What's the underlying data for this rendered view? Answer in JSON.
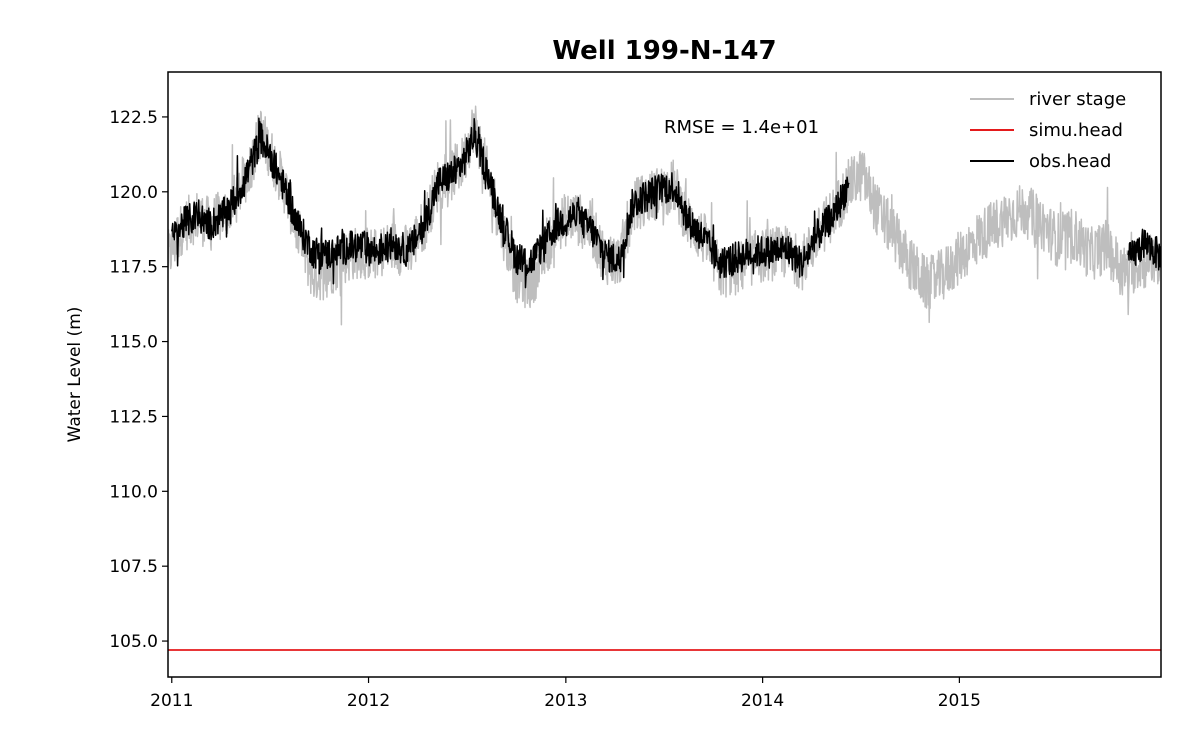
{
  "chart_data": {
    "type": "line",
    "title": "Well 199-N-147",
    "xlabel": "",
    "ylabel": "Water Level (m)",
    "annotation": "RMSE = 1.4e+01",
    "legend_position": "top-right",
    "grid": false,
    "xlim": [
      "2010-12-25",
      "2016-01-10"
    ],
    "ylim": [
      103.8,
      124.0
    ],
    "x_ticks": [
      {
        "label": "2011",
        "date": "2011-01-01"
      },
      {
        "label": "2012",
        "date": "2012-01-01"
      },
      {
        "label": "2013",
        "date": "2013-01-01"
      },
      {
        "label": "2014",
        "date": "2014-01-01"
      },
      {
        "label": "2015",
        "date": "2015-01-01"
      }
    ],
    "y_ticks": [
      "105.0",
      "107.5",
      "110.0",
      "112.5",
      "115.0",
      "117.5",
      "120.0",
      "122.5"
    ],
    "series": [
      {
        "name": "river stage",
        "color": "#bebebe",
        "noise": 0.9,
        "x": [
          "2010-12-25",
          "2011-01-20",
          "2011-02-15",
          "2011-03-15",
          "2011-04-10",
          "2011-05-01",
          "2011-05-25",
          "2011-06-15",
          "2011-07-05",
          "2011-08-01",
          "2011-08-25",
          "2011-09-20",
          "2011-10-15",
          "2011-11-15",
          "2011-12-15",
          "2012-01-15",
          "2012-02-15",
          "2012-03-15",
          "2012-04-15",
          "2012-05-10",
          "2012-06-05",
          "2012-06-25",
          "2012-07-15",
          "2012-08-05",
          "2012-09-01",
          "2012-10-01",
          "2012-10-25",
          "2012-11-20",
          "2012-12-15",
          "2013-01-15",
          "2013-02-15",
          "2013-03-15",
          "2013-04-10",
          "2013-05-05",
          "2013-06-01",
          "2013-06-25",
          "2013-07-20",
          "2013-08-15",
          "2013-09-15",
          "2013-10-15",
          "2013-11-15",
          "2013-12-15",
          "2014-01-15",
          "2014-02-15",
          "2014-03-15",
          "2014-04-15",
          "2014-05-15",
          "2014-06-10",
          "2014-07-05",
          "2014-08-01",
          "2014-09-01",
          "2014-10-01",
          "2014-11-01",
          "2014-12-01",
          "2015-01-01",
          "2015-02-01",
          "2015-03-01",
          "2015-04-01",
          "2015-05-01",
          "2015-06-01",
          "2015-07-01",
          "2015-08-01",
          "2015-09-01",
          "2015-10-01",
          "2015-11-01",
          "2015-12-01",
          "2016-01-10"
        ],
        "y": [
          117.8,
          118.8,
          119.2,
          118.9,
          119.3,
          119.8,
          120.8,
          122.0,
          121.2,
          120.0,
          118.5,
          117.2,
          117.3,
          117.8,
          118.0,
          117.9,
          118.2,
          118.0,
          119.0,
          120.3,
          120.6,
          121.0,
          122.3,
          120.8,
          119.0,
          117.2,
          116.9,
          117.8,
          118.9,
          119.2,
          118.8,
          117.8,
          117.7,
          119.5,
          119.8,
          120.0,
          120.2,
          119.0,
          118.4,
          117.3,
          117.4,
          117.8,
          117.9,
          118.0,
          117.6,
          118.6,
          119.4,
          120.2,
          120.6,
          119.4,
          118.6,
          117.6,
          116.9,
          117.2,
          117.8,
          118.4,
          118.8,
          119.2,
          119.4,
          119.0,
          118.4,
          118.6,
          117.9,
          118.2,
          117.3,
          117.6,
          117.8
        ]
      },
      {
        "name": "simu.head",
        "color": "#e41a1c",
        "noise": 0,
        "x": [
          "2010-12-25",
          "2016-01-10"
        ],
        "y": [
          104.7,
          104.7
        ]
      },
      {
        "name": "obs.head",
        "color": "#000000",
        "noise": 0.55,
        "x": [
          "2011-01-01",
          "2011-01-20",
          "2011-02-15",
          "2011-03-15",
          "2011-04-10",
          "2011-05-01",
          "2011-05-25",
          "2011-06-15",
          "2011-07-05",
          "2011-08-01",
          "2011-08-25",
          "2011-09-20",
          "2011-10-15",
          "2011-11-15",
          "2011-12-15",
          "2012-01-15",
          "2012-02-15",
          "2012-03-15",
          "2012-04-15",
          "2012-05-10",
          "2012-06-05",
          "2012-06-25",
          "2012-07-15",
          "2012-08-05",
          "2012-09-01",
          "2012-10-01",
          "2012-10-25",
          "2012-11-20",
          "2012-12-15",
          "2013-01-15",
          "2013-02-15",
          "2013-03-15",
          "2013-04-10",
          "2013-05-05",
          "2013-06-01",
          "2013-06-25",
          "2013-07-20",
          "2013-08-15",
          "2013-09-15",
          "2013-10-15",
          "2013-11-15",
          "2013-12-15",
          "2014-01-15",
          "2014-02-15",
          "2014-03-15",
          "2014-04-15",
          "2014-05-15",
          "2014-06-10",
          "2015-11-10",
          "2015-11-25",
          "2015-12-10",
          "2015-12-25",
          "2016-01-10"
        ],
        "y": [
          118.4,
          118.9,
          119.2,
          118.9,
          119.3,
          119.8,
          120.8,
          121.8,
          121.1,
          120.0,
          118.8,
          118.0,
          117.9,
          118.1,
          118.2,
          118.0,
          118.3,
          118.0,
          119.0,
          120.3,
          120.6,
          121.0,
          121.9,
          120.8,
          119.2,
          117.8,
          117.6,
          118.2,
          118.9,
          119.2,
          118.8,
          117.9,
          117.7,
          119.6,
          119.9,
          120.1,
          120.2,
          119.1,
          118.4,
          117.6,
          117.8,
          118.0,
          118.0,
          118.1,
          117.6,
          118.6,
          119.3,
          120.3,
          117.7,
          118.0,
          118.3,
          118.1,
          117.8
        ],
        "segments": [
          [
            0,
            47
          ],
          [
            48,
            52
          ]
        ]
      }
    ]
  }
}
